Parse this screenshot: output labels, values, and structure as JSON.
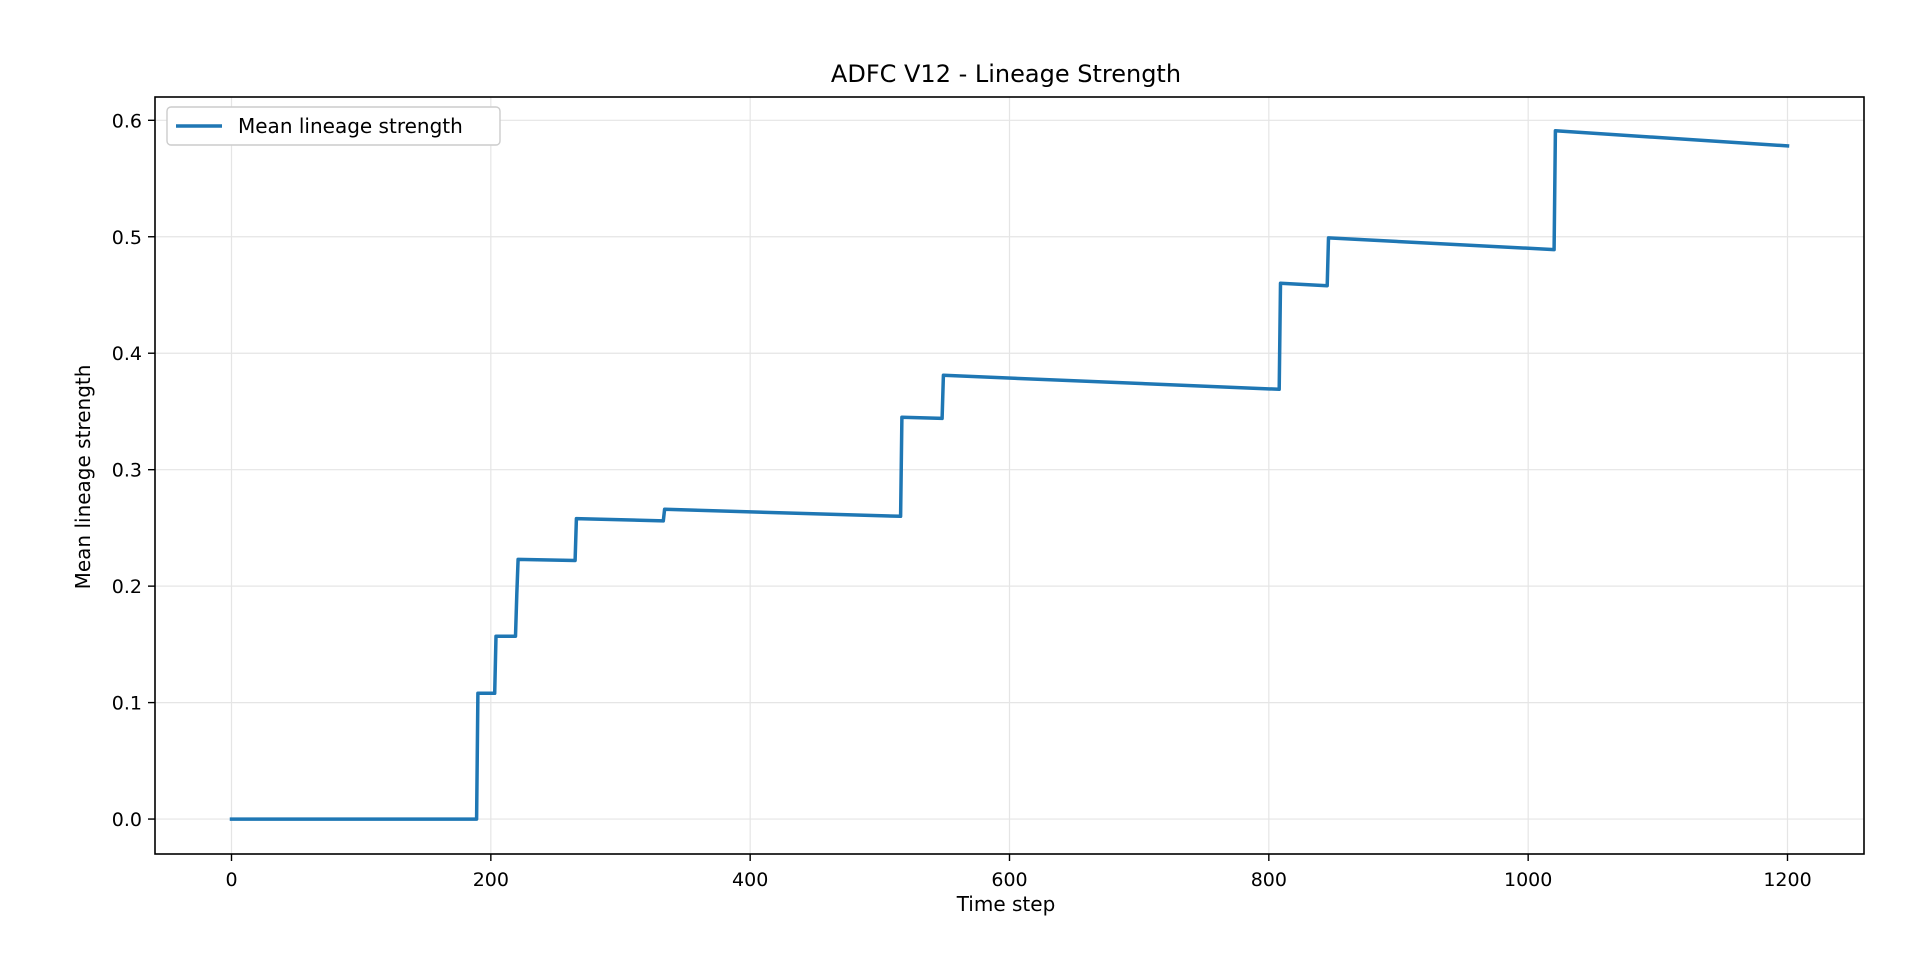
{
  "chart_data": {
    "type": "line",
    "title": "ADFC V12 - Lineage Strength",
    "xlabel": "Time step",
    "ylabel": "Mean lineage strength",
    "xlim": [
      -59,
      1259
    ],
    "ylim": [
      -0.03,
      0.62
    ],
    "xticks": [
      0,
      200,
      400,
      600,
      800,
      1000,
      1200
    ],
    "yticks": [
      0.0,
      0.1,
      0.2,
      0.3,
      0.4,
      0.5,
      0.6
    ],
    "xtick_labels": [
      "0",
      "200",
      "400",
      "600",
      "800",
      "1000",
      "1200"
    ],
    "ytick_labels": [
      "0.0",
      "0.1",
      "0.2",
      "0.3",
      "0.4",
      "0.5",
      "0.6"
    ],
    "grid": true,
    "legend_position": "top-left",
    "series": [
      {
        "name": "Mean lineage strength",
        "color": "#1f77b4",
        "x": [
          0,
          189,
          190,
          203,
          204,
          219,
          220,
          221,
          265,
          266,
          333,
          334,
          516,
          517,
          548,
          549,
          808,
          809,
          845,
          846,
          1020,
          1021,
          1200
        ],
        "y": [
          0.0,
          0.0,
          0.108,
          0.108,
          0.157,
          0.157,
          0.193,
          0.223,
          0.222,
          0.258,
          0.256,
          0.266,
          0.26,
          0.345,
          0.344,
          0.381,
          0.369,
          0.46,
          0.458,
          0.499,
          0.489,
          0.591,
          0.578
        ]
      }
    ]
  }
}
